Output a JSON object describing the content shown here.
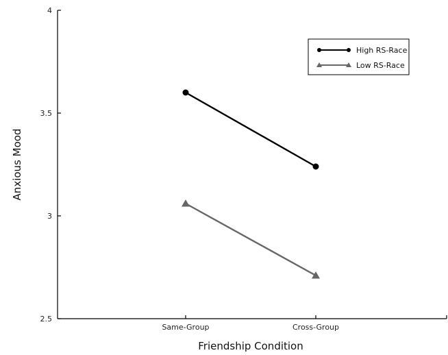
{
  "chart_data": {
    "type": "line",
    "title": "",
    "xlabel": "Friendship Condition",
    "ylabel": "Anxious Mood",
    "categories": [
      "Same-Group",
      "Cross-Group"
    ],
    "ylim": [
      2.5,
      4
    ],
    "yticks": [
      "4",
      "3.5",
      "3",
      "2.5"
    ],
    "grid": false,
    "legend_position": "top-right",
    "series": [
      {
        "name": "High RS-Race",
        "values": [
          3.6,
          3.24
        ],
        "color": "#000000",
        "marker": "circle"
      },
      {
        "name": "Low RS-Race",
        "values": [
          3.06,
          2.71
        ],
        "color": "#666666",
        "marker": "triangle"
      }
    ]
  }
}
